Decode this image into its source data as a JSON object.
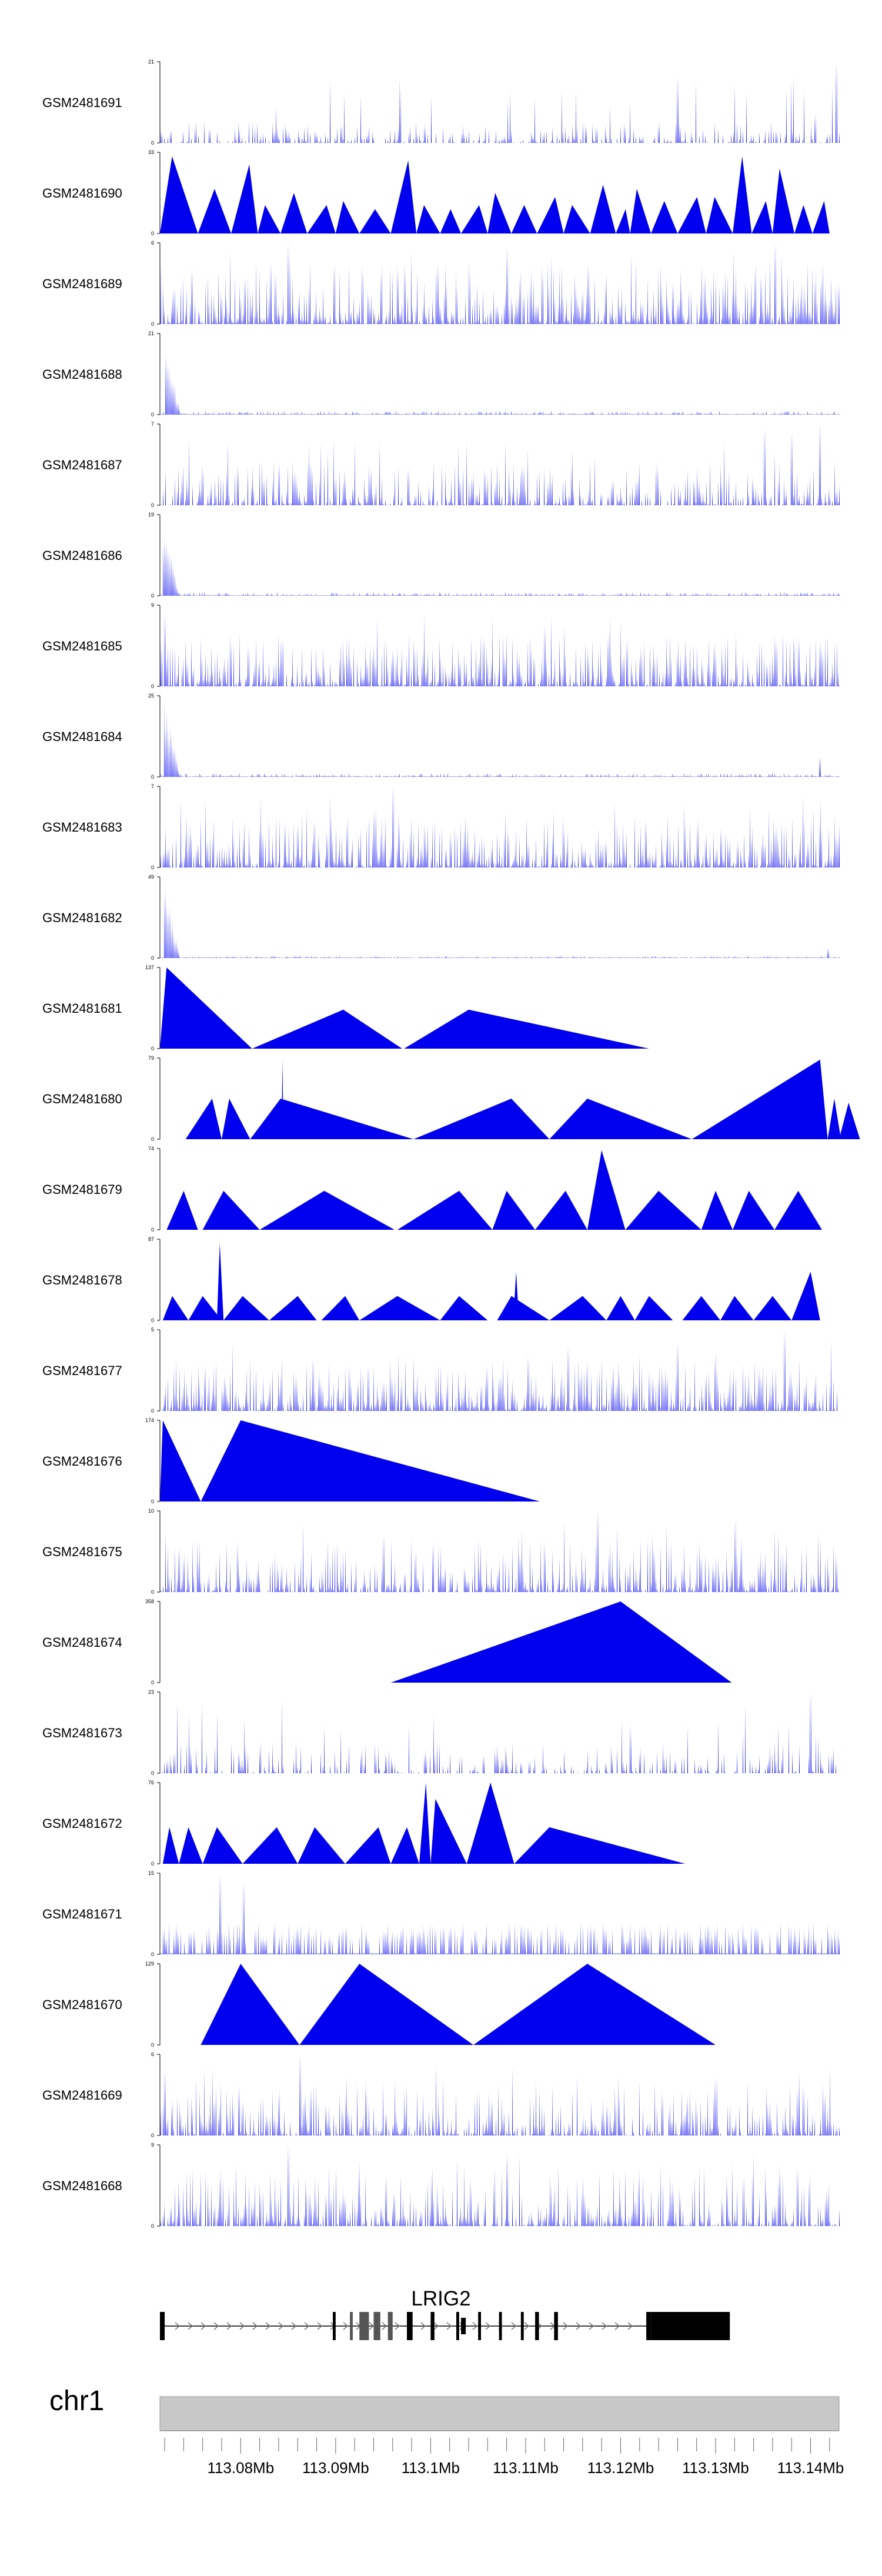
{
  "chart_data": {
    "type": "area",
    "chromosome": "chr1",
    "gene": "LRIG2",
    "xlim": [
      113.0715,
      113.143
    ],
    "x_ticks": [
      "113.08Mb",
      "113.09Mb",
      "113.1Mb",
      "113.11Mb",
      "113.12Mb",
      "113.13Mb",
      "113.14Mb"
    ],
    "x_tick_values": [
      113.08,
      113.09,
      113.1,
      113.11,
      113.12,
      113.13,
      113.14
    ],
    "series_color": "#0000ee",
    "gene_color": "#000000",
    "ideogram_color": "#c8c8c8",
    "tracks": [
      {
        "name": "GSM2481691",
        "ymax": "21",
        "style": "noise",
        "density": 0.6,
        "base": 0.12,
        "peaks": [
          [
            113.126,
            0.8
          ],
          [
            113.1427,
            1.0
          ],
          [
            113.1405,
            0.35
          ]
        ]
      },
      {
        "name": "GSM2481690",
        "ymax": "33",
        "style": "mountains",
        "breaks": [
          113.0715,
          113.0755,
          113.079,
          113.0818,
          113.0842,
          113.087,
          113.09,
          113.0925,
          113.0958,
          113.0985,
          113.101,
          113.1032,
          113.106,
          113.1085,
          113.1112,
          113.114,
          113.1168,
          113.1195,
          113.121,
          113.1232,
          113.126,
          113.129,
          113.1318,
          113.1338,
          113.136,
          113.1383,
          113.1402,
          113.142
        ],
        "heights": [
          0.95,
          0.55,
          0.85,
          0.35,
          0.5,
          0.35,
          0.4,
          0.3,
          0.9,
          0.35,
          0.3,
          0.35,
          0.5,
          0.35,
          0.45,
          0.35,
          0.6,
          0.3,
          0.55,
          0.4,
          0.45,
          0.45,
          0.95,
          0.4,
          0.8,
          0.35,
          0.4
        ]
      },
      {
        "name": "GSM2481689",
        "ymax": "6",
        "style": "noise",
        "density": 1.0,
        "base": 0.35,
        "peaks": [
          [
            113.085,
            1.0
          ],
          [
            113.108,
            0.95
          ],
          [
            113.1362,
            1.0
          ]
        ]
      },
      {
        "name": "GSM2481688",
        "ymax": "21",
        "style": "spike",
        "spike_x": 113.0721,
        "spike_h": 0.9,
        "base": 0.05,
        "peaks": []
      },
      {
        "name": "GSM2481687",
        "ymax": "7",
        "style": "noise",
        "density": 0.8,
        "base": 0.25,
        "peaks": [
          [
            113.1352,
            0.95
          ],
          [
            113.138,
            0.9
          ],
          [
            113.141,
            1.0
          ]
        ]
      },
      {
        "name": "GSM2481686",
        "ymax": "19",
        "style": "spike",
        "spike_x": 113.0719,
        "spike_h": 1.0,
        "base": 0.05,
        "peaks": []
      },
      {
        "name": "GSM2481685",
        "ymax": "9",
        "style": "noise",
        "density": 0.95,
        "base": 0.3,
        "peaks": [
          [
            113.072,
            0.9
          ],
          [
            113.112,
            0.75
          ]
        ]
      },
      {
        "name": "GSM2481684",
        "ymax": "25",
        "style": "spike",
        "spike_x": 113.072,
        "spike_h": 1.0,
        "base": 0.05,
        "peaks": [
          [
            113.141,
            0.25
          ]
        ]
      },
      {
        "name": "GSM2481683",
        "ymax": "7",
        "style": "noise",
        "density": 0.95,
        "base": 0.3,
        "peaks": [
          [
            113.096,
            1.0
          ],
          [
            113.094,
            0.7
          ]
        ]
      },
      {
        "name": "GSM2481682",
        "ymax": "49",
        "style": "spike",
        "spike_x": 113.072,
        "spike_h": 0.95,
        "base": 0.03,
        "peaks": [
          [
            113.1418,
            0.12
          ]
        ]
      },
      {
        "name": "GSM2481681",
        "ymax": "137",
        "style": "peaks",
        "tri": [
          [
            113.0715,
            113.0722,
            113.0812,
            1.0
          ],
          [
            113.0812,
            113.0908,
            113.097,
            0.48
          ],
          [
            113.0972,
            113.104,
            113.123,
            0.48
          ]
        ]
      },
      {
        "name": "GSM2481680",
        "ymax": "79",
        "style": "peaks",
        "tri": [
          [
            113.0742,
            113.077,
            113.078,
            0.5
          ],
          [
            113.078,
            113.0788,
            113.081,
            0.5
          ],
          [
            113.081,
            113.0842,
            113.0982,
            0.5
          ],
          [
            113.0843,
            113.0844,
            113.0845,
            0.98
          ],
          [
            113.0982,
            113.1085,
            113.1125,
            0.5
          ],
          [
            113.1125,
            113.1165,
            113.1275,
            0.5
          ],
          [
            113.1275,
            113.141,
            113.1418,
            0.98
          ],
          [
            113.1418,
            113.1425,
            113.1432,
            0.5
          ],
          [
            113.143,
            113.144,
            113.1452,
            0.45
          ]
        ]
      },
      {
        "name": "GSM2481679",
        "ymax": "74",
        "style": "peaks",
        "tri": [
          [
            113.0722,
            113.074,
            113.0755,
            0.48
          ],
          [
            113.076,
            113.0782,
            113.082,
            0.48
          ],
          [
            113.082,
            113.0888,
            113.0962,
            0.48
          ],
          [
            113.0965,
            113.103,
            113.1065,
            0.48
          ],
          [
            113.1065,
            113.108,
            113.111,
            0.48
          ],
          [
            113.111,
            113.1142,
            113.1165,
            0.48
          ],
          [
            113.1165,
            113.118,
            113.1205,
            0.98
          ],
          [
            113.1205,
            113.124,
            113.1285,
            0.48
          ],
          [
            113.1285,
            113.13,
            113.1318,
            0.48
          ],
          [
            113.1318,
            113.1335,
            113.1362,
            0.48
          ],
          [
            113.1362,
            113.1387,
            113.1412,
            0.48
          ]
        ]
      },
      {
        "name": "GSM2481678",
        "ymax": "87",
        "style": "peaks",
        "tri": [
          [
            113.0718,
            113.0728,
            113.0745,
            0.3
          ],
          [
            113.0745,
            113.076,
            113.078,
            0.3
          ],
          [
            113.0775,
            113.0778,
            113.0782,
            0.95
          ],
          [
            113.0782,
            113.0802,
            113.083,
            0.3
          ],
          [
            113.083,
            113.086,
            113.088,
            0.3
          ],
          [
            113.0885,
            113.091,
            113.0925,
            0.3
          ],
          [
            113.0925,
            113.0965,
            113.101,
            0.3
          ],
          [
            113.101,
            113.103,
            113.106,
            0.3
          ],
          [
            113.107,
            113.1085,
            113.1125,
            0.3
          ],
          [
            113.1087,
            113.109,
            113.1093,
            0.6
          ],
          [
            113.1125,
            113.116,
            113.1185,
            0.3
          ],
          [
            113.1185,
            113.12,
            113.1215,
            0.3
          ],
          [
            113.1215,
            113.123,
            113.1255,
            0.3
          ],
          [
            113.1265,
            113.1285,
            113.1305,
            0.3
          ],
          [
            113.1305,
            113.132,
            113.134,
            0.3
          ],
          [
            113.134,
            113.136,
            113.138,
            0.3
          ],
          [
            113.138,
            113.14,
            113.141,
            0.6
          ]
        ]
      },
      {
        "name": "GSM2481677",
        "ymax": "5",
        "style": "noise",
        "density": 0.95,
        "base": 0.3,
        "peaks": [
          [
            113.1372,
            1.0
          ],
          [
            113.126,
            0.85
          ],
          [
            113.1145,
            0.8
          ]
        ]
      },
      {
        "name": "GSM2481676",
        "ymax": "174",
        "style": "peaks",
        "tri": [
          [
            113.0715,
            113.0718,
            113.0758,
            1.0
          ],
          [
            113.0758,
            113.08,
            113.1115,
            1.0
          ]
        ]
      },
      {
        "name": "GSM2481675",
        "ymax": "10",
        "style": "noise",
        "density": 0.8,
        "base": 0.3,
        "peaks": [
          [
            113.1175,
            1.0
          ],
          [
            113.132,
            0.9
          ],
          [
            113.095,
            0.7
          ]
        ]
      },
      {
        "name": "GSM2481674",
        "ymax": "358",
        "style": "peaks",
        "tri": [
          [
            113.0958,
            113.12,
            113.1317,
            1.0
          ]
        ]
      },
      {
        "name": "GSM2481673",
        "ymax": "23",
        "style": "noise",
        "density": 0.5,
        "base": 0.18,
        "peaks": [
          [
            113.14,
            1.0
          ]
        ]
      },
      {
        "name": "GSM2481672",
        "ymax": "76",
        "style": "peaks",
        "tri": [
          [
            113.0718,
            113.0725,
            113.0735,
            0.45
          ],
          [
            113.0735,
            113.0745,
            113.076,
            0.45
          ],
          [
            113.076,
            113.0775,
            113.0802,
            0.45
          ],
          [
            113.0802,
            113.0838,
            113.086,
            0.45
          ],
          [
            113.086,
            113.0878,
            113.091,
            0.45
          ],
          [
            113.091,
            113.0945,
            113.0958,
            0.45
          ],
          [
            113.0958,
            113.0975,
            113.0988,
            0.45
          ],
          [
            113.0988,
            113.0995,
            113.1,
            1.0
          ],
          [
            113.1,
            113.1005,
            113.1038,
            0.8
          ],
          [
            113.1038,
            113.1063,
            113.1088,
            1.0
          ],
          [
            113.1088,
            113.1125,
            113.1268,
            0.45
          ]
        ]
      },
      {
        "name": "GSM2481671",
        "ymax": "15",
        "style": "teeth",
        "density": 0.5,
        "base": 0.4,
        "peaks": [
          [
            113.0778,
            1.0
          ],
          [
            113.0803,
            0.9
          ]
        ]
      },
      {
        "name": "GSM2481670",
        "ymax": "129",
        "style": "peaks",
        "tri": [
          [
            113.0758,
            113.08,
            113.0862,
            1.0
          ],
          [
            113.0862,
            113.0925,
            113.1045,
            1.0
          ],
          [
            113.1045,
            113.1165,
            113.13,
            1.0
          ]
        ]
      },
      {
        "name": "GSM2481669",
        "ymax": "6",
        "style": "noise",
        "density": 0.8,
        "base": 0.3,
        "peaks": [
          [
            113.0862,
            1.0
          ],
          [
            113.072,
            0.8
          ],
          [
            113.13,
            0.7
          ]
        ]
      },
      {
        "name": "GSM2481668",
        "ymax": "9",
        "style": "noise",
        "density": 0.8,
        "base": 0.35,
        "peaks": [
          [
            113.085,
            1.0
          ],
          [
            113.108,
            0.9
          ]
        ]
      }
    ],
    "gene_model": {
      "start": 113.0715,
      "end": 113.1315,
      "exons": [
        [
          113.0715,
          113.072
        ],
        [
          113.0897,
          113.09
        ],
        [
          113.0915,
          113.0918
        ],
        [
          113.0925,
          113.0935
        ],
        [
          113.094,
          113.0947
        ],
        [
          113.0955,
          113.096
        ],
        [
          113.0975,
          113.0981
        ],
        [
          113.1,
          113.1004
        ],
        [
          113.1027,
          113.103
        ],
        [
          113.105,
          113.1053
        ],
        [
          113.1072,
          113.1075
        ],
        [
          113.1095,
          113.1098
        ],
        [
          113.111,
          113.1114
        ],
        [
          113.113,
          113.1134
        ],
        [
          113.1227,
          113.1232
        ],
        [
          113.1232,
          113.1312
        ]
      ],
      "thick": [
        [
          113.1233,
          113.1315
        ]
      ]
    }
  }
}
